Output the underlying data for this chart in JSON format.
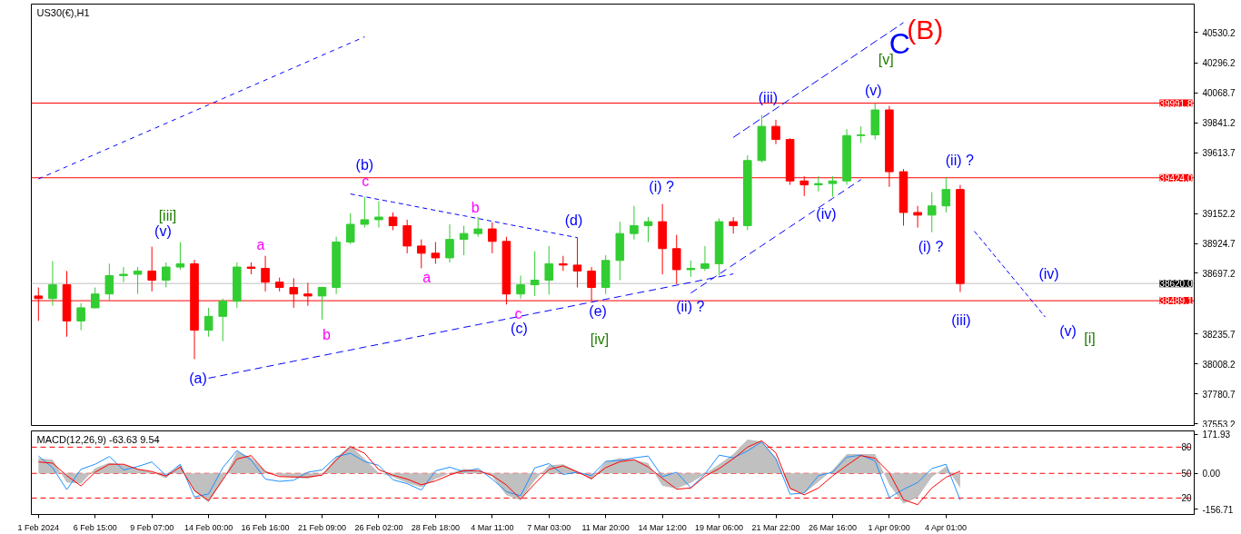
{
  "chart_data": [
    {
      "type": "candlestick",
      "title": "US30(€),H1",
      "categories": [
        null,
        null,
        null,
        null,
        null,
        null,
        null,
        null,
        null,
        null,
        null,
        null,
        null,
        null,
        null,
        null,
        null,
        null,
        null,
        null,
        null,
        null,
        null,
        null,
        null,
        null,
        null,
        null,
        null,
        null,
        null,
        null,
        null,
        null,
        null,
        null,
        null,
        null,
        null,
        null,
        null,
        null,
        null,
        null,
        null,
        null,
        null,
        null,
        null,
        null,
        null,
        null,
        null,
        null,
        null,
        null,
        null,
        null,
        null,
        null,
        null,
        null,
        null,
        null,
        null,
        null,
        null,
        null,
        null,
        null,
        null,
        null,
        null,
        null,
        null,
        null,
        null,
        null,
        null,
        null,
        null,
        null
      ],
      "ylim": [
        37540,
        40745
      ],
      "yticks": [
        40530.2,
        40296.2,
        40068.7,
        39841.2,
        39613.7,
        39152.2,
        38924.7,
        38697.2,
        38235.7,
        38008.2,
        37780.7,
        37553.2
      ],
      "ohlc": [
        [
          38525,
          38590,
          38335,
          38505
        ],
        [
          38505,
          38790,
          38450,
          38610
        ],
        [
          38610,
          38715,
          38215,
          38335
        ],
        [
          38335,
          38470,
          38265,
          38435
        ],
        [
          38435,
          38590,
          38430,
          38540
        ],
        [
          38540,
          38770,
          38485,
          38680
        ],
        [
          38680,
          38745,
          38630,
          38690
        ],
        [
          38690,
          38745,
          38540,
          38715
        ],
        [
          38715,
          38900,
          38560,
          38645
        ],
        [
          38645,
          38780,
          38590,
          38745
        ],
        [
          38745,
          38935,
          38725,
          38770
        ],
        [
          38770,
          38800,
          38045,
          38265
        ],
        [
          38265,
          38435,
          38215,
          38370
        ],
        [
          38370,
          38505,
          38180,
          38485
        ],
        [
          38485,
          38780,
          38435,
          38745
        ],
        [
          38745,
          38780,
          38690,
          38735
        ],
        [
          38735,
          38830,
          38560,
          38630
        ],
        [
          38630,
          38665,
          38560,
          38590
        ],
        [
          38590,
          38660,
          38435,
          38540
        ],
        [
          38540,
          38625,
          38450,
          38525
        ],
        [
          38525,
          38595,
          38345,
          38590
        ],
        [
          38590,
          38975,
          38540,
          38935
        ],
        [
          38935,
          39155,
          38920,
          39070
        ],
        [
          39070,
          39280,
          39045,
          39105
        ],
        [
          39105,
          39245,
          39045,
          39125
        ],
        [
          39125,
          39160,
          39025,
          39060
        ],
        [
          39060,
          39105,
          38850,
          38905
        ],
        [
          38905,
          38955,
          38735,
          38850
        ],
        [
          38850,
          38935,
          38770,
          38815
        ],
        [
          38815,
          39070,
          38780,
          38955
        ],
        [
          38955,
          39060,
          38835,
          39000
        ],
        [
          39000,
          39125,
          38975,
          39035
        ],
        [
          39035,
          39085,
          38850,
          38940
        ],
        [
          38940,
          38975,
          38460,
          38540
        ],
        [
          38540,
          38680,
          38505,
          38610
        ],
        [
          38610,
          38865,
          38525,
          38645
        ],
        [
          38645,
          38905,
          38535,
          38770
        ],
        [
          38770,
          38830,
          38715,
          38760
        ],
        [
          38760,
          38970,
          38590,
          38715
        ],
        [
          38715,
          38745,
          38490,
          38590
        ],
        [
          38590,
          38835,
          38540,
          38795
        ],
        [
          38795,
          39090,
          38645,
          39000
        ],
        [
          39000,
          39210,
          38955,
          39060
        ],
        [
          39060,
          39125,
          38935,
          39090
        ],
        [
          39090,
          39225,
          38690,
          38885
        ],
        [
          38885,
          38990,
          38615,
          38725
        ],
        [
          38725,
          38795,
          38670,
          38735
        ],
        [
          38735,
          38905,
          38715,
          38770
        ],
        [
          38770,
          39115,
          38680,
          39090
        ],
        [
          39090,
          39125,
          39000,
          39060
        ],
        [
          39060,
          39595,
          39025,
          39555
        ],
        [
          39555,
          39900,
          39540,
          39815
        ],
        [
          39815,
          39865,
          39680,
          39715
        ],
        [
          39715,
          39725,
          39370,
          39400
        ],
        [
          39400,
          39435,
          39285,
          39370
        ],
        [
          39370,
          39435,
          39320,
          39380
        ],
        [
          39380,
          39435,
          39280,
          39400
        ],
        [
          39400,
          39795,
          39370,
          39745
        ],
        [
          39745,
          39815,
          39690,
          39750
        ],
        [
          39750,
          39990,
          39715,
          39940
        ],
        [
          39940,
          39970,
          39355,
          39470
        ],
        [
          39470,
          39490,
          39060,
          39160
        ],
        [
          39160,
          39210,
          39045,
          39140
        ],
        [
          39140,
          39315,
          39010,
          39210
        ],
        [
          39210,
          39425,
          39160,
          39335
        ],
        [
          39335,
          39370,
          38555,
          38620
        ],
        null,
        null,
        null,
        null,
        null,
        null,
        null,
        null,
        null,
        null,
        null,
        null,
        null,
        null,
        null,
        null
      ],
      "colors": [
        "#ff0000",
        "#32cd32",
        "#ff0000",
        "#32cd32",
        "#32cd32",
        "#32cd32",
        "#32cd32",
        "#32cd32",
        "#ff0000",
        "#32cd32",
        "#32cd32",
        "#ff0000",
        "#32cd32",
        "#32cd32",
        "#32cd32",
        "#ff0000",
        "#ff0000",
        "#ff0000",
        "#ff0000",
        "#ff0000",
        "#32cd32",
        "#32cd32",
        "#32cd32",
        "#32cd32",
        "#32cd32",
        "#ff0000",
        "#ff0000",
        "#ff0000",
        "#ff0000",
        "#32cd32",
        "#32cd32",
        "#32cd32",
        "#ff0000",
        "#ff0000",
        "#32cd32",
        "#32cd32",
        "#32cd32",
        "#ff0000",
        "#ff0000",
        "#ff0000",
        "#32cd32",
        "#32cd32",
        "#32cd32",
        "#32cd32",
        "#ff0000",
        "#ff0000",
        "#32cd32",
        "#32cd32",
        "#32cd32",
        "#ff0000",
        "#32cd32",
        "#32cd32",
        "#ff0000",
        "#ff0000",
        "#ff0000",
        "#32cd32",
        "#32cd32",
        "#32cd32",
        "#32cd32",
        "#32cd32",
        "#ff0000",
        "#ff0000",
        "#ff0000",
        "#32cd32",
        "#32cd32",
        "#ff0000",
        null,
        null,
        null,
        null,
        null,
        null,
        null,
        null,
        null,
        null,
        null,
        null,
        null,
        null,
        null,
        null
      ],
      "line_style": "dashed",
      "series": [
        {
          "type": "line",
          "color": "#0000ff",
          "values": [
            39415,
            39462,
            39509,
            39556,
            39603,
            39650,
            39697,
            39744,
            39791,
            39838,
            39885,
            39932,
            39979,
            40026,
            40073,
            40120,
            40167,
            40214,
            40261,
            40308,
            40355,
            40402,
            40449,
            40496,
            null,
            null,
            null,
            null,
            null,
            null,
            null,
            null,
            null,
            null,
            null,
            null,
            null,
            null,
            null,
            null,
            null,
            null,
            null,
            null,
            null,
            null,
            null,
            null,
            null,
            null,
            null,
            null,
            null,
            null,
            null,
            null,
            null,
            null,
            null,
            null,
            null,
            null,
            null,
            null,
            null,
            null,
            null,
            null,
            null,
            null,
            null,
            null,
            null,
            null,
            null,
            null,
            null,
            null,
            null,
            null,
            null,
            null
          ]
        },
        {
          "type": "line",
          "color": "#0000ff",
          "values": [
            null,
            null,
            null,
            null,
            null,
            null,
            null,
            null,
            null,
            null,
            null,
            null,
            37900,
            37921,
            37943,
            37964,
            37986,
            38007,
            38029,
            38050,
            38071,
            38093,
            38114,
            38136,
            38157,
            38178,
            38200,
            38221,
            38243,
            38264,
            38286,
            38307,
            38328,
            38350,
            38371,
            38393,
            38414,
            38435,
            38457,
            38478,
            38500,
            38521,
            38543,
            38564,
            38585,
            38607,
            38628,
            38650,
            38671,
            38693,
            null,
            null,
            null,
            null,
            null,
            null,
            null,
            null,
            null,
            null,
            null,
            null,
            null,
            null,
            null,
            null,
            null,
            null,
            null,
            null,
            null,
            null,
            null,
            null,
            null,
            null,
            null,
            null,
            null,
            null,
            null,
            null
          ]
        },
        {
          "type": "line",
          "color": "#0000ff",
          "values": [
            null,
            null,
            null,
            null,
            null,
            null,
            null,
            null,
            null,
            null,
            null,
            null,
            null,
            null,
            null,
            null,
            null,
            null,
            null,
            null,
            null,
            null,
            39301,
            39280,
            39259,
            39239,
            39218,
            39197,
            39176,
            39155,
            39135,
            39114,
            39093,
            39072,
            39051,
            39031,
            39010,
            38989,
            38969,
            null,
            null,
            null,
            null,
            null,
            null,
            null,
            null,
            null,
            null,
            null,
            null,
            null,
            null,
            null,
            null,
            null,
            null,
            null,
            null,
            null,
            null,
            null,
            null,
            null,
            null,
            null,
            null,
            null,
            null,
            null,
            null,
            null,
            null,
            null,
            null,
            null,
            null,
            null,
            null,
            null,
            null,
            null
          ]
        },
        {
          "type": "line",
          "color": "#0000ff",
          "values": [
            null,
            null,
            null,
            null,
            null,
            null,
            null,
            null,
            null,
            null,
            null,
            null,
            null,
            null,
            null,
            null,
            null,
            null,
            null,
            null,
            null,
            null,
            null,
            null,
            null,
            null,
            null,
            null,
            null,
            null,
            null,
            null,
            null,
            null,
            null,
            null,
            null,
            null,
            null,
            null,
            null,
            null,
            null,
            null,
            null,
            null,
            38547,
            38619,
            38691,
            38763,
            38835,
            38907,
            38979,
            39051,
            39123,
            39195,
            39267,
            39339,
            39410,
            null,
            null,
            null,
            null,
            null,
            null,
            null,
            null,
            null,
            null,
            null,
            null,
            null,
            null,
            null,
            null,
            null,
            null,
            null,
            null,
            null,
            null,
            null
          ]
        },
        {
          "type": "line",
          "color": "#0000ff",
          "values": [
            null,
            null,
            null,
            null,
            null,
            null,
            null,
            null,
            null,
            null,
            null,
            null,
            null,
            null,
            null,
            null,
            null,
            null,
            null,
            null,
            null,
            null,
            null,
            null,
            null,
            null,
            null,
            null,
            null,
            null,
            null,
            null,
            null,
            null,
            null,
            null,
            null,
            null,
            null,
            null,
            null,
            null,
            null,
            null,
            null,
            null,
            null,
            null,
            null,
            39731,
            39804,
            39877,
            39949,
            40022,
            40095,
            40168,
            40240,
            40313,
            40386,
            40459,
            40531,
            40604,
            null,
            null,
            null,
            null,
            null,
            null,
            null,
            null,
            null,
            null,
            null,
            null,
            null,
            null,
            null,
            null,
            null,
            null,
            null,
            null
          ]
        },
        {
          "type": "line",
          "color": "#0000ff",
          "values": [
            null,
            null,
            null,
            null,
            null,
            null,
            null,
            null,
            null,
            null,
            null,
            null,
            null,
            null,
            null,
            null,
            null,
            null,
            null,
            null,
            null,
            null,
            null,
            null,
            null,
            null,
            null,
            null,
            null,
            null,
            null,
            null,
            null,
            null,
            null,
            null,
            null,
            null,
            null,
            null,
            null,
            null,
            null,
            null,
            null,
            null,
            null,
            null,
            null,
            null,
            null,
            null,
            null,
            null,
            null,
            null,
            null,
            null,
            null,
            null,
            null,
            null,
            null,
            null,
            null,
            null,
            39017,
            38887,
            38756,
            38625,
            38495,
            38364,
            null,
            null,
            null,
            null,
            null,
            null,
            null,
            null,
            null,
            null
          ]
        }
      ],
      "ref_lines": [
        {
          "axis": "y",
          "value": 39991.8,
          "label": "39991.8",
          "color": "#ff0000"
        },
        {
          "axis": "y",
          "value": 39424.0,
          "label": "39424.0",
          "color": "#ff0000"
        },
        {
          "axis": "y",
          "value": 38620.0,
          "label": "38620.0",
          "color": "#c0c0c0"
        },
        {
          "axis": "y",
          "value": 38489.1,
          "label": "38489.1",
          "color": "#ff0000"
        }
      ],
      "annotations": [
        "(B)",
        "C",
        "[v]",
        "(v)",
        "(iii)",
        "(ii) ?",
        "(iv)",
        "(i) ?",
        "(iii)",
        "(iv)",
        "(v)",
        "[i]",
        "(i) ?",
        "(d)",
        "b",
        "(ii) ?",
        "(e)",
        "[iv]",
        "c",
        "(c)",
        "a",
        "(b)",
        "c",
        "a",
        "b",
        "(a)",
        "[iii]",
        "(v)"
      ]
    },
    {
      "type": "line",
      "title": "MACD(12,26,9) -63.63 9.54",
      "categories": [
        "1 Feb 2024",
        null,
        null,
        null,
        "6 Feb 15:00",
        null,
        null,
        null,
        "9 Feb 07:00",
        null,
        null,
        null,
        "14 Feb 00:00",
        null,
        null,
        null,
        "16 Feb 16:00",
        null,
        null,
        null,
        "21 Feb 09:00",
        null,
        null,
        null,
        "26 Feb 02:00",
        null,
        null,
        null,
        "28 Feb 18:00",
        null,
        null,
        null,
        "4 Mar 11:00",
        null,
        null,
        null,
        "7 Mar 03:00",
        null,
        null,
        null,
        "11 Mar 20:00",
        null,
        null,
        null,
        "14 Mar 12:00",
        null,
        null,
        null,
        "19 Mar 06:00",
        null,
        null,
        null,
        "21 Mar 22:00",
        null,
        null,
        null,
        "26 Mar 16:00",
        null,
        null,
        null,
        "1 Apr 09:00",
        null,
        null,
        null,
        "4 Apr 01:00",
        null,
        null,
        null,
        null,
        null,
        null,
        null,
        null,
        null,
        null,
        null,
        null,
        null,
        null,
        null,
        null,
        null
      ],
      "ylim": [
        -180,
        186
      ],
      "yticks": [
        171.93,
        {
          "value": 0,
          "label": "0.00"
        },
        -156.71
      ],
      "ref_lines": [
        {
          "axis": "y",
          "value": 115,
          "color": "#ff0000",
          "line_style": "dashed"
        },
        {
          "axis": "y",
          "value": 0,
          "color": "#ff0000",
          "line_style": "dashed"
        },
        {
          "axis": "y",
          "value": -108,
          "color": "#ff0000",
          "line_style": "dashed"
        }
      ],
      "annotations": [
        {
          "text": "80",
          "y": 115
        },
        {
          "text": "50",
          "y": 0
        },
        {
          "text": "20",
          "y": -108
        }
      ],
      "series": [
        {
          "type": "area",
          "color": "#c0c0c0",
          "values": [
            67,
            60,
            -40,
            -45,
            23,
            47,
            38,
            21,
            5,
            -22,
            40,
            -80,
            -127,
            -30,
            95,
            70,
            10,
            -10,
            -19,
            -23,
            -5,
            70,
            122,
            64,
            2,
            -16,
            -42,
            -61,
            -25,
            0,
            20,
            12,
            -13,
            -95,
            -117,
            -30,
            36,
            40,
            10,
            -29,
            52,
            67,
            60,
            45,
            -55,
            -67,
            -42,
            -3,
            40,
            85,
            148,
            140,
            70,
            -72,
            -88,
            -37,
            15,
            85,
            85,
            85,
            -50,
            -132,
            -105,
            -16,
            30,
            -63.63,
            null,
            null,
            null,
            null,
            null,
            null,
            null,
            null,
            null,
            null,
            null,
            null,
            null,
            null,
            null,
            null
          ]
        },
        {
          "type": "line",
          "color": "#1e90ff",
          "values": [
            76,
            25,
            -71,
            18,
            40,
            74,
            15,
            30,
            50,
            -10,
            40,
            -103,
            -90,
            25,
            100,
            58,
            -25,
            -35,
            -30,
            5,
            15,
            73,
            88,
            52,
            35,
            -28,
            -45,
            -73,
            11,
            27,
            8,
            21,
            -25,
            -80,
            -98,
            24,
            43,
            -5,
            5,
            -10,
            53,
            57,
            68,
            76,
            -15,
            5,
            -63,
            -3,
            80,
            68,
            98,
            138,
            64,
            -91,
            -86,
            -10,
            5,
            71,
            80,
            54,
            -106,
            -70,
            -40,
            21,
            40,
            -117,
            null,
            null,
            null,
            null,
            null,
            null,
            null,
            null,
            null,
            null,
            null,
            null,
            null,
            null,
            null,
            null
          ]
        },
        {
          "type": "line",
          "color": "#ff0000",
          "values": [
            50,
            45,
            -10,
            -55,
            5,
            40,
            40,
            18,
            8,
            -12,
            28,
            -75,
            -119,
            -28,
            63,
            78,
            7,
            -14,
            -16,
            -16,
            -8,
            58,
            117,
            88,
            16,
            -8,
            -25,
            -50,
            -33,
            -7,
            12,
            12,
            -9,
            -51,
            -113,
            -45,
            17,
            33,
            6,
            -23,
            25,
            51,
            60,
            28,
            -22,
            -69,
            -64,
            -13,
            21,
            64,
            115,
            143,
            90,
            -65,
            -94,
            -64,
            -11,
            35,
            78,
            66,
            3,
            -115,
            -137,
            -64,
            -17,
            9.54,
            null,
            null,
            null,
            null,
            null,
            null,
            null,
            null,
            null,
            null,
            null,
            null,
            null,
            null,
            null,
            null
          ]
        }
      ]
    }
  ]
}
